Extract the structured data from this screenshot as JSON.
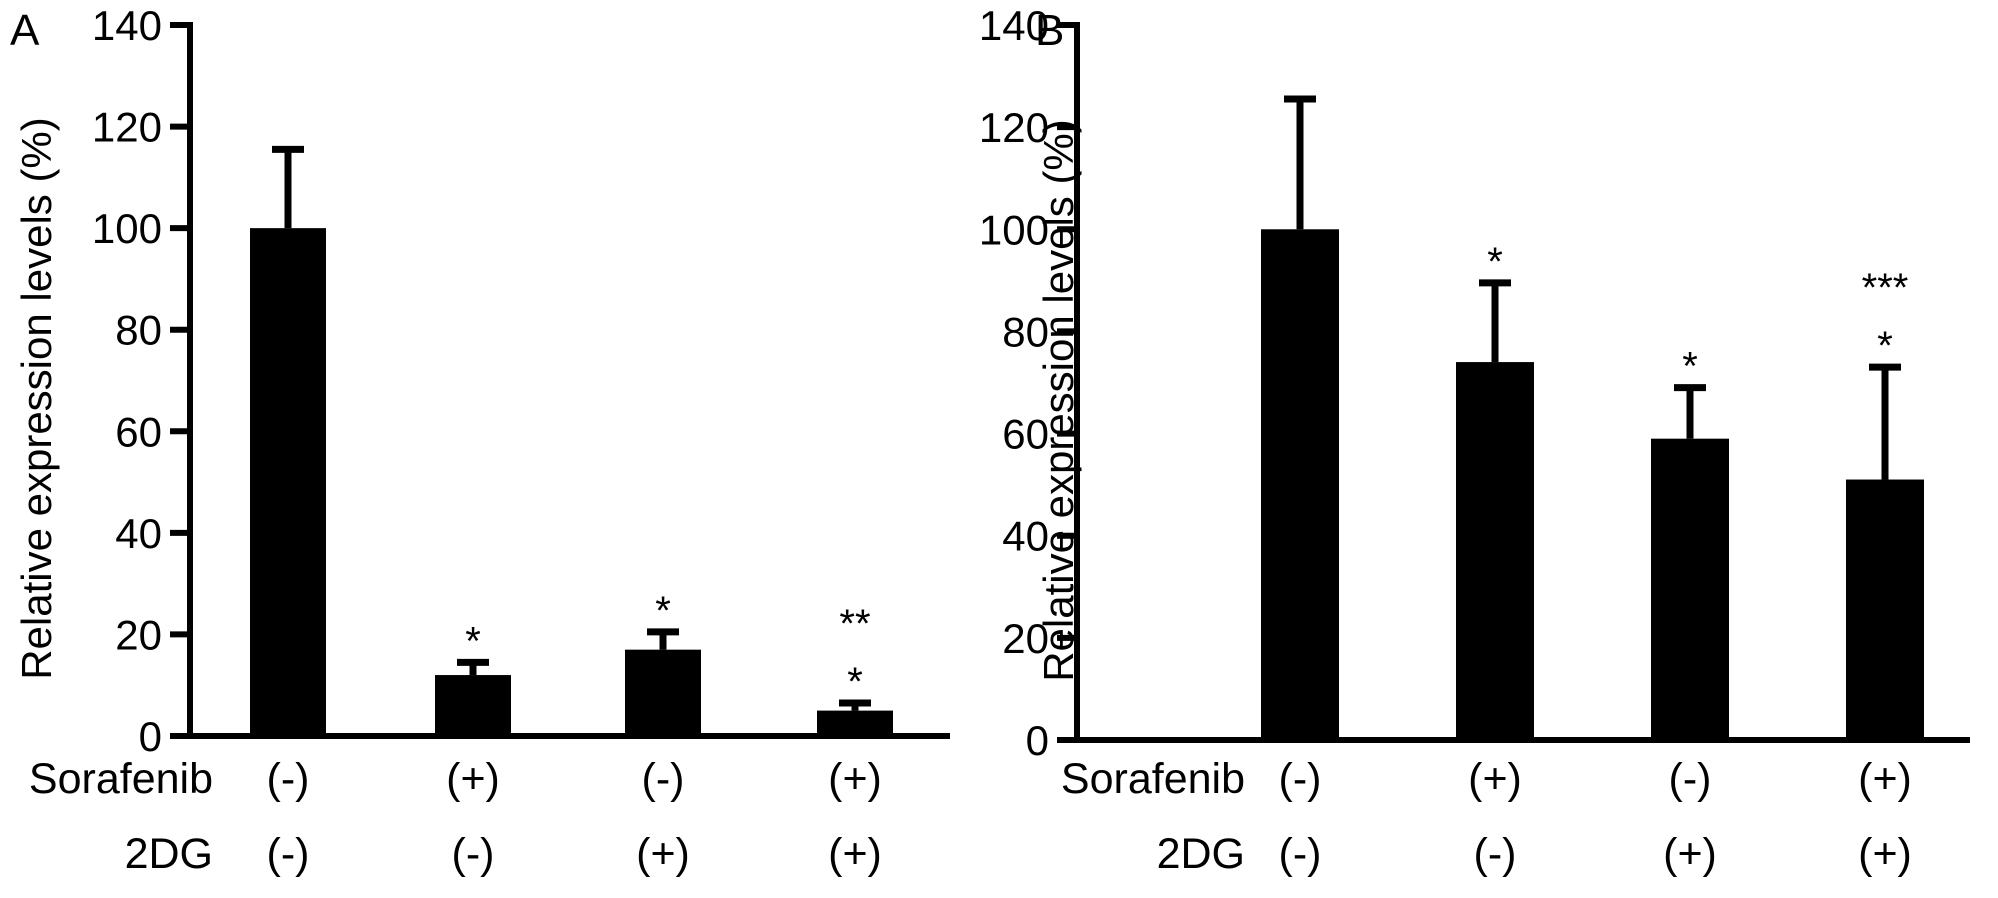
{
  "chart_data": [
    {
      "type": "bar",
      "panel": "A",
      "ylabel": "Relative expression levels (%)",
      "ylim": [
        0,
        140
      ],
      "yticks": [
        0,
        20,
        40,
        60,
        80,
        100,
        120,
        140
      ],
      "grid": false,
      "categories": [
        "Sorafenib (-) / 2DG (-)",
        "Sorafenib (+) / 2DG (-)",
        "Sorafenib (-) / 2DG (+)",
        "Sorafenib (+) / 2DG (+)"
      ],
      "values": [
        100,
        12,
        17,
        5
      ],
      "error_upper": [
        115.5,
        14.5,
        20.5,
        6.5
      ],
      "significance": [
        [],
        [
          "*"
        ],
        [
          "*"
        ],
        [
          "**",
          "*"
        ]
      ],
      "condition_rows": [
        {
          "label": "Sorafenib",
          "values": [
            "(-)",
            "(+)",
            "(-)",
            "(+)"
          ]
        },
        {
          "label": "2DG",
          "values": [
            "(-)",
            "(-)",
            "(+)",
            "(+)"
          ]
        }
      ]
    },
    {
      "type": "bar",
      "panel": "B",
      "ylabel": "Relative expression levels (%)",
      "ylim": [
        0,
        140
      ],
      "yticks": [
        0,
        20,
        40,
        60,
        80,
        100,
        120,
        140
      ],
      "grid": false,
      "categories": [
        "Sorafenib (-) / 2DG (-)",
        "Sorafenib (+) / 2DG (-)",
        "Sorafenib (-) / 2DG (+)",
        "Sorafenib (+) / 2DG (+)"
      ],
      "values": [
        100,
        74,
        59,
        51
      ],
      "error_upper": [
        125.5,
        89.5,
        69,
        73
      ],
      "significance": [
        [],
        [
          "*"
        ],
        [
          "*"
        ],
        [
          "***",
          "*"
        ]
      ],
      "condition_rows": [
        {
          "label": "Sorafenib",
          "values": [
            "(-)",
            "(+)",
            "(-)",
            "(+)"
          ]
        },
        {
          "label": "2DG",
          "values": [
            "(-)",
            "(-)",
            "(+)",
            "(+)"
          ]
        }
      ]
    }
  ],
  "colors": {
    "bar": "#000000",
    "axis": "#000000",
    "background": "#ffffff"
  }
}
